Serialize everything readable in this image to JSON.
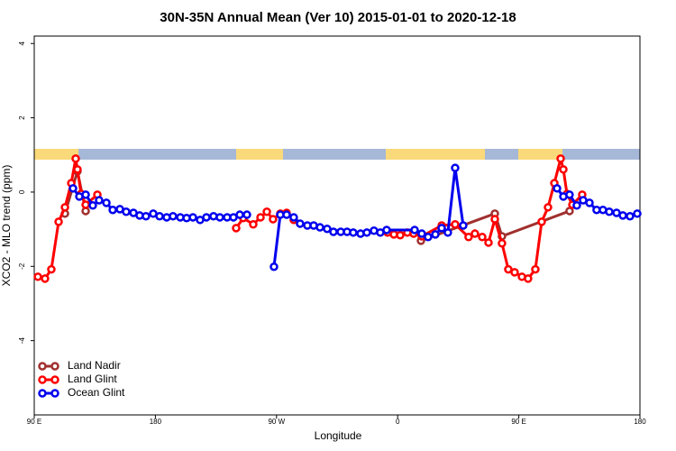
{
  "chart_data": {
    "type": "line",
    "title": "30N-35N Annual Mean (Ver 10)   2015-01-01 to 2020-12-18",
    "x_label": "Longitude",
    "y_label": "XCO2 - MLO trend (ppm)",
    "xlim": [
      90,
      540
    ],
    "ylim": [
      -6,
      4.2
    ],
    "xticks": [
      {
        "value": 90,
        "label": "90 E"
      },
      180,
      {
        "value": 270,
        "label": "90 W"
      },
      {
        "value": 360,
        "label": "0"
      },
      {
        "value": 450,
        "label": "90 E"
      },
      {
        "value": 540,
        "label": "180"
      }
    ],
    "yticks": [
      -4,
      -2,
      0,
      2,
      4
    ],
    "legend": "bottom-left",
    "series": [
      {
        "name": "Land Nadir",
        "color": "#a0302e",
        "x": [
          112.8,
          122.1,
          128.2,
          null,
          377.3,
          432.2,
          437.5,
          487.7
        ],
        "values": [
          -0.58,
          0.56,
          -0.51,
          null,
          -1.31,
          -0.58,
          -1.19,
          -0.51
        ]
      },
      {
        "name": "Land Glint",
        "color": "#ff0000",
        "x": [
          92.7,
          98.0,
          102.7,
          108.1,
          112.8,
          117.5,
          120.8,
          122.1,
          124.8,
          128.2,
          136.9,
          null,
          240.0,
          245.3,
          252.7,
          258.1,
          262.8,
          267.4,
          272.8,
          277.5,
          282.8,
          null,
          352.5,
          357.2,
          361.9,
          367.2,
          371.9,
          377.9,
          392.7,
          402.7,
          412.7,
          417.4,
          422.8,
          427.5,
          432.2,
          437.5,
          442.2,
          446.9,
          452.3,
          456.9,
          462.3,
          467.0,
          471.7,
          476.4,
          481.1,
          483.1,
          485.8,
          489.8,
          497.1
        ],
        "values": [
          -2.28,
          -2.33,
          -2.08,
          -0.8,
          -0.41,
          0.24,
          0.9,
          0.61,
          -0.05,
          -0.34,
          -0.07,
          null,
          -0.97,
          -0.7,
          -0.87,
          -0.68,
          -0.53,
          -0.73,
          -0.58,
          -0.56,
          -0.75,
          null,
          -1.09,
          -1.14,
          -1.16,
          -1.09,
          -1.12,
          -1.19,
          -0.9,
          -0.87,
          -1.21,
          -1.12,
          -1.21,
          -1.36,
          -0.73,
          -1.38,
          -2.08,
          -2.16,
          -2.28,
          -2.33,
          -2.08,
          -0.8,
          -0.41,
          0.24,
          0.9,
          0.61,
          -0.05,
          -0.34,
          -0.07
        ]
      },
      {
        "name": "Ocean Glint",
        "color": "#0000ee",
        "x": [
          118.8,
          123.5,
          128.2,
          133.5,
          138.2,
          143.6,
          148.3,
          153.6,
          158.3,
          163.7,
          168.3,
          173.0,
          178.4,
          183.1,
          188.4,
          193.1,
          198.5,
          203.2,
          207.9,
          213.2,
          217.9,
          223.2,
          227.9,
          233.3,
          238.0,
          242.7,
          248.0,
          null,
          268.1,
          272.8,
          277.5,
          282.8,
          287.5,
          292.9,
          297.6,
          302.3,
          307.6,
          312.3,
          317.7,
          322.4,
          327.0,
          332.4,
          337.1,
          342.4,
          347.1,
          351.8,
          372.6,
          377.9,
          382.6,
          388.0,
          392.7,
          397.3,
          402.7,
          408.7,
          null,
          478.4,
          483.1,
          487.7,
          493.1,
          497.8,
          502.5,
          507.8,
          512.5,
          517.2,
          522.6,
          527.3,
          532.6,
          538.0
        ],
        "values": [
          0.1,
          -0.12,
          -0.07,
          -0.36,
          -0.22,
          -0.29,
          -0.48,
          -0.46,
          -0.53,
          -0.56,
          -0.63,
          -0.65,
          -0.58,
          -0.65,
          -0.68,
          -0.65,
          -0.68,
          -0.7,
          -0.68,
          -0.75,
          -0.68,
          -0.65,
          -0.68,
          -0.68,
          -0.68,
          -0.61,
          -0.61,
          null,
          -2.01,
          -0.61,
          -0.61,
          -0.68,
          -0.85,
          -0.9,
          -0.9,
          -0.95,
          -0.99,
          -1.07,
          -1.07,
          -1.07,
          -1.09,
          -1.12,
          -1.09,
          -1.04,
          -1.09,
          -1.02,
          -1.02,
          -1.12,
          -1.21,
          -1.14,
          -0.97,
          -1.09,
          0.65,
          -0.9,
          null,
          0.1,
          -0.12,
          -0.07,
          -0.36,
          -0.22,
          -0.29,
          -0.48,
          -0.48,
          -0.53,
          -0.56,
          -0.63,
          -0.65,
          -0.58
        ]
      }
    ]
  }
}
